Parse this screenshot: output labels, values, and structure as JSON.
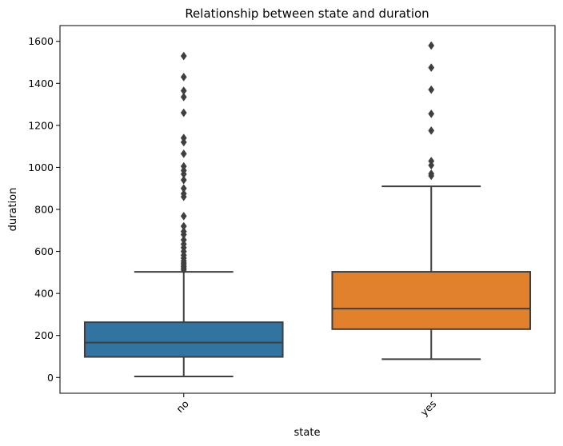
{
  "chart_data": {
    "type": "box",
    "title": "Relationship between state and duration",
    "xlabel": "state",
    "ylabel": "duration",
    "categories": [
      "no",
      "yes"
    ],
    "ylim": [
      -75,
      1675
    ],
    "yticks": [
      0,
      200,
      400,
      600,
      800,
      1000,
      1200,
      1400,
      1600
    ],
    "grid": false,
    "legend": "none",
    "x_tick_rotation_deg": 45,
    "colors": {
      "no": "#3274a1",
      "yes": "#e1812c",
      "edge": "#3f3f3f"
    },
    "boxes": [
      {
        "category": "no",
        "whisker_low": 5,
        "q1": 98,
        "median": 166,
        "q3": 263,
        "whisker_high": 503,
        "outliers": [
          512,
          520,
          528,
          536,
          545,
          555,
          568,
          582,
          600,
          618,
          635,
          655,
          680,
          695,
          720,
          768,
          860,
          875,
          900,
          940,
          968,
          985,
          1005,
          1065,
          1120,
          1140,
          1260,
          1335,
          1365,
          1430,
          1530
        ]
      },
      {
        "category": "yes",
        "whisker_low": 87,
        "q1": 230,
        "median": 328,
        "q3": 503,
        "whisker_high": 910,
        "outliers": [
          960,
          970,
          1010,
          1030,
          1175,
          1255,
          1370,
          1475,
          1580
        ]
      }
    ]
  }
}
